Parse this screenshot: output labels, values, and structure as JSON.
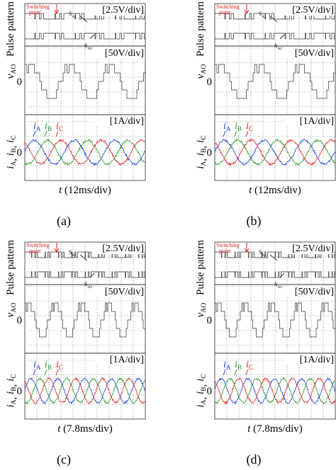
{
  "labels": {
    "switching_point_1": "Switching",
    "switching_point_2": "point",
    "s_a1": {
      "main": "S",
      "sub": "A1"
    },
    "s_a2": {
      "main": "S",
      "sub": "A2"
    },
    "pulse_axis": "Pulse pattern",
    "voltage_axis": {
      "main": "v",
      "sub": "AO"
    },
    "zero": "0",
    "current_axis": [
      {
        "main": "i",
        "sub": "A"
      },
      {
        "main": "i",
        "sub": "B"
      },
      {
        "main": "i",
        "sub": "C"
      }
    ],
    "separator": ", ",
    "pulse_scale": "[2.5V/div]",
    "voltage_scale": "[50V/div]",
    "current_scale": "[1A/div]"
  },
  "panels": [
    {
      "label": "(a)",
      "time_axis": {
        "main": "t",
        "rest": " (12ms/div)"
      }
    },
    {
      "label": "(b)",
      "time_axis": {
        "main": "t",
        "rest": " (12ms/div)"
      }
    },
    {
      "label": "(c)",
      "time_axis": {
        "main": "t",
        "rest": " (7.8ms/div)"
      }
    },
    {
      "label": "(d)",
      "time_axis": {
        "main": "t",
        "rest": " (7.8ms/div)"
      }
    }
  ]
}
